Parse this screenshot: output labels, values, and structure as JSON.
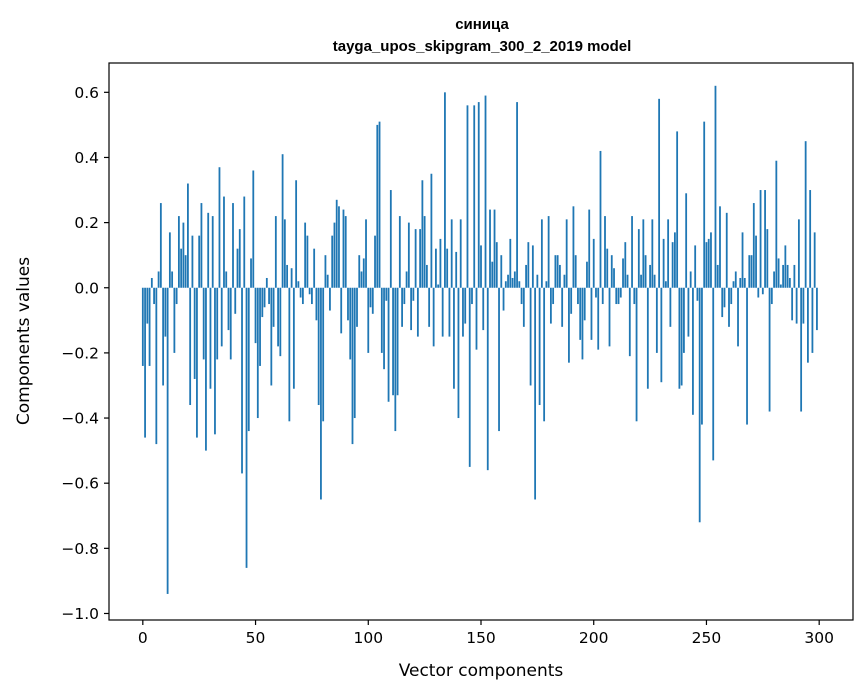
{
  "chart_data": {
    "type": "bar",
    "title": "синица",
    "subtitle": "tayga_upos_skipgram_300_2_2019 model",
    "xlabel": "Vector components",
    "ylabel": "Components values",
    "xlim": [
      -15,
      315
    ],
    "ylim": [
      -1.02,
      0.69
    ],
    "xticks": [
      0,
      50,
      100,
      150,
      200,
      250,
      300
    ],
    "xtick_labels": [
      "0",
      "50",
      "100",
      "150",
      "200",
      "250",
      "300"
    ],
    "yticks": [
      -1.0,
      -0.8,
      -0.6,
      -0.4,
      -0.2,
      0.0,
      0.2,
      0.4,
      0.6
    ],
    "ytick_labels": [
      "−1.0",
      "−0.8",
      "−0.6",
      "−0.4",
      "−0.2",
      "0.0",
      "0.2",
      "0.4",
      "0.6"
    ],
    "color": "#1f77b4",
    "values": [
      -0.24,
      -0.46,
      -0.11,
      -0.24,
      0.03,
      -0.05,
      -0.48,
      0.05,
      0.26,
      -0.3,
      -0.15,
      -0.94,
      0.17,
      0.05,
      -0.2,
      -0.05,
      0.22,
      0.12,
      0.2,
      0.1,
      0.32,
      -0.36,
      0.16,
      -0.28,
      -0.46,
      0.16,
      0.26,
      -0.22,
      -0.5,
      0.23,
      -0.31,
      0.22,
      -0.45,
      -0.22,
      0.37,
      -0.18,
      0.28,
      0.05,
      -0.13,
      -0.22,
      0.26,
      -0.08,
      0.12,
      0.18,
      -0.57,
      0.28,
      -0.86,
      -0.44,
      0.09,
      0.36,
      -0.17,
      -0.4,
      -0.24,
      -0.09,
      -0.06,
      0.03,
      -0.05,
      -0.3,
      -0.12,
      0.22,
      -0.18,
      -0.21,
      0.41,
      0.21,
      0.07,
      -0.41,
      0.06,
      -0.31,
      0.33,
      0.02,
      -0.03,
      -0.05,
      0.2,
      0.16,
      -0.02,
      -0.05,
      0.12,
      -0.1,
      -0.36,
      -0.65,
      -0.41,
      0.1,
      0.04,
      -0.07,
      0.16,
      0.2,
      0.27,
      0.25,
      -0.14,
      0.24,
      0.22,
      -0.1,
      -0.22,
      -0.48,
      -0.4,
      -0.12,
      0.1,
      0.05,
      0.09,
      0.21,
      -0.2,
      -0.06,
      -0.08,
      0.16,
      0.5,
      0.51,
      -0.2,
      -0.25,
      -0.04,
      -0.35,
      0.3,
      -0.33,
      -0.44,
      -0.33,
      0.22,
      -0.12,
      -0.05,
      0.05,
      0.2,
      -0.13,
      -0.04,
      0.18,
      -0.15,
      0.18,
      0.33,
      0.22,
      0.07,
      -0.12,
      0.35,
      -0.18,
      0.12,
      0.01,
      0.15,
      -0.15,
      0.6,
      0.12,
      -0.15,
      0.21,
      -0.31,
      0.11,
      -0.4,
      0.21,
      -0.15,
      -0.11,
      0.56,
      -0.55,
      -0.05,
      0.56,
      -0.19,
      0.57,
      0.13,
      -0.13,
      0.59,
      -0.56,
      0.24,
      0.08,
      0.24,
      0.14,
      -0.44,
      0.1,
      -0.07,
      0.02,
      0.04,
      0.15,
      0.03,
      0.05,
      0.57,
      0.02,
      -0.05,
      -0.12,
      0.07,
      0.14,
      -0.3,
      0.13,
      -0.65,
      0.04,
      -0.36,
      0.21,
      -0.41,
      0.02,
      0.22,
      -0.11,
      -0.05,
      0.1,
      0.1,
      0.07,
      -0.12,
      0.04,
      0.21,
      -0.23,
      -0.08,
      0.25,
      0.1,
      -0.05,
      -0.16,
      -0.22,
      -0.1,
      0.08,
      0.24,
      -0.16,
      0.15,
      -0.03,
      -0.19,
      0.42,
      -0.05,
      0.22,
      0.12,
      -0.18,
      0.1,
      0.06,
      -0.05,
      -0.05,
      -0.03,
      0.09,
      0.14,
      0.04,
      -0.21,
      0.22,
      -0.05,
      -0.41,
      0.18,
      0.04,
      0.21,
      0.1,
      -0.31,
      0.07,
      0.21,
      0.04,
      -0.2,
      0.58,
      -0.29,
      0.15,
      0.02,
      0.21,
      -0.12,
      0.14,
      0.17,
      0.48,
      -0.31,
      -0.3,
      -0.2,
      0.29,
      -0.15,
      0.05,
      -0.39,
      0.13,
      -0.04,
      -0.72,
      -0.42,
      0.51,
      0.14,
      0.15,
      0.17,
      -0.53,
      0.62,
      0.07,
      0.25,
      -0.09,
      -0.06,
      0.23,
      -0.12,
      -0.05,
      0.02,
      0.05,
      -0.18,
      0.03,
      0.17,
      0.03,
      -0.42,
      0.1,
      0.1,
      0.26,
      0.16,
      -0.03,
      0.3,
      -0.02,
      0.3,
      0.18,
      -0.38,
      -0.05,
      0.05,
      0.39,
      0.09,
      0.01,
      0.07,
      0.13,
      0.07,
      0.03,
      -0.1,
      0.07,
      -0.11,
      0.21,
      -0.38,
      -0.11,
      0.45,
      -0.23,
      0.3,
      -0.2,
      0.17,
      -0.13
    ]
  }
}
